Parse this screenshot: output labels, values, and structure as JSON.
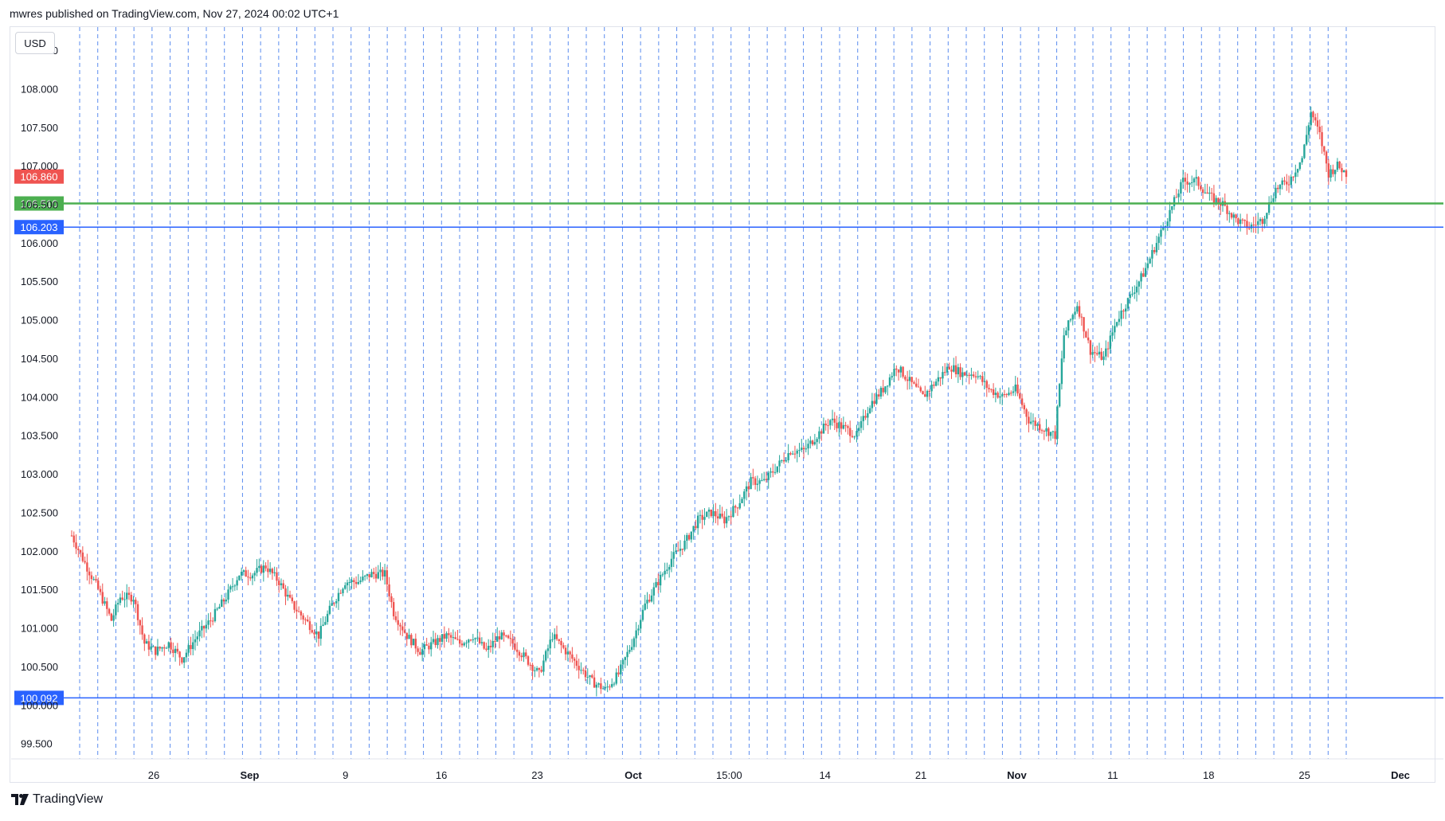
{
  "header": {
    "published_text": "mwres published on TradingView.com, Nov 27, 2024 00:02 UTC+1"
  },
  "currency_label": "USD",
  "footer": {
    "brand": "TradingView"
  },
  "colors": {
    "up": "#26a69a",
    "down": "#ef5350",
    "support": "#2962ff",
    "level_green": "#4caf50",
    "grid_dashed": "#5b8def"
  },
  "chart_data": {
    "type": "candlestick",
    "ylim": [
      99.3,
      108.8
    ],
    "y_ticks": [
      "99.500",
      "100.000",
      "100.500",
      "101.000",
      "101.500",
      "102.000",
      "102.500",
      "103.000",
      "103.500",
      "104.000",
      "104.500",
      "105.000",
      "105.500",
      "106.000",
      "106.500",
      "107.000",
      "107.500",
      "108.000",
      "108.500"
    ],
    "x_labels": [
      {
        "label": "26",
        "bold": false
      },
      {
        "label": "Sep",
        "bold": true
      },
      {
        "label": "9",
        "bold": false
      },
      {
        "label": "16",
        "bold": false
      },
      {
        "label": "23",
        "bold": false
      },
      {
        "label": "Oct",
        "bold": true
      },
      {
        "label": "15:00",
        "bold": false
      },
      {
        "label": "14",
        "bold": false
      },
      {
        "label": "21",
        "bold": false
      },
      {
        "label": "Nov",
        "bold": true
      },
      {
        "label": "11",
        "bold": false
      },
      {
        "label": "18",
        "bold": false
      },
      {
        "label": "25",
        "bold": false
      },
      {
        "label": "Dec",
        "bold": true
      }
    ],
    "price_levels": [
      {
        "value": 106.86,
        "label": "106.860",
        "color": "#ef5350",
        "line": false
      },
      {
        "value": 106.51,
        "label": "106.510",
        "color": "#4caf50",
        "line": true
      },
      {
        "value": 106.203,
        "label": "106.203",
        "color": "#2962ff",
        "line": true
      },
      {
        "value": 100.092,
        "label": "100.092",
        "color": "#2962ff",
        "line": true
      }
    ],
    "vertical_session_lines": 71,
    "path_anchors": [
      [
        0,
        102.2
      ],
      [
        5,
        101.9
      ],
      [
        12,
        101.5
      ],
      [
        18,
        101.1
      ],
      [
        22,
        101.4
      ],
      [
        28,
        101.4
      ],
      [
        33,
        100.8
      ],
      [
        38,
        100.7
      ],
      [
        44,
        100.8
      ],
      [
        50,
        100.6
      ],
      [
        57,
        100.9
      ],
      [
        63,
        101.1
      ],
      [
        70,
        101.4
      ],
      [
        76,
        101.7
      ],
      [
        82,
        101.7
      ],
      [
        88,
        101.8
      ],
      [
        94,
        101.6
      ],
      [
        100,
        101.3
      ],
      [
        106,
        101.1
      ],
      [
        112,
        100.9
      ],
      [
        118,
        101.3
      ],
      [
        124,
        101.6
      ],
      [
        130,
        101.6
      ],
      [
        136,
        101.7
      ],
      [
        142,
        101.7
      ],
      [
        146,
        101.2
      ],
      [
        152,
        100.9
      ],
      [
        158,
        100.7
      ],
      [
        164,
        100.8
      ],
      [
        170,
        100.9
      ],
      [
        176,
        100.8
      ],
      [
        182,
        100.9
      ],
      [
        188,
        100.7
      ],
      [
        194,
        100.9
      ],
      [
        200,
        100.8
      ],
      [
        206,
        100.6
      ],
      [
        212,
        100.4
      ],
      [
        218,
        100.9
      ],
      [
        224,
        100.7
      ],
      [
        230,
        100.5
      ],
      [
        236,
        100.3
      ],
      [
        242,
        100.2
      ],
      [
        248,
        100.4
      ],
      [
        254,
        100.8
      ],
      [
        260,
        101.3
      ],
      [
        266,
        101.6
      ],
      [
        272,
        101.9
      ],
      [
        278,
        102.1
      ],
      [
        284,
        102.4
      ],
      [
        290,
        102.5
      ],
      [
        296,
        102.4
      ],
      [
        302,
        102.6
      ],
      [
        308,
        102.9
      ],
      [
        314,
        102.9
      ],
      [
        320,
        103.1
      ],
      [
        326,
        103.3
      ],
      [
        332,
        103.3
      ],
      [
        338,
        103.5
      ],
      [
        344,
        103.7
      ],
      [
        350,
        103.6
      ],
      [
        356,
        103.5
      ],
      [
        362,
        103.9
      ],
      [
        368,
        104.1
      ],
      [
        374,
        104.4
      ],
      [
        380,
        104.2
      ],
      [
        386,
        104.0
      ],
      [
        392,
        104.2
      ],
      [
        398,
        104.4
      ],
      [
        404,
        104.3
      ],
      [
        410,
        104.3
      ],
      [
        416,
        104.1
      ],
      [
        422,
        104.0
      ],
      [
        428,
        104.1
      ],
      [
        434,
        103.7
      ],
      [
        440,
        103.6
      ],
      [
        446,
        103.5
      ],
      [
        450,
        104.8
      ],
      [
        456,
        105.2
      ],
      [
        462,
        104.6
      ],
      [
        468,
        104.5
      ],
      [
        474,
        105.0
      ],
      [
        480,
        105.3
      ],
      [
        486,
        105.6
      ],
      [
        492,
        106.0
      ],
      [
        498,
        106.4
      ],
      [
        504,
        106.8
      ],
      [
        510,
        106.8
      ],
      [
        516,
        106.6
      ],
      [
        522,
        106.5
      ],
      [
        528,
        106.3
      ],
      [
        534,
        106.2
      ],
      [
        540,
        106.3
      ],
      [
        546,
        106.7
      ],
      [
        552,
        106.8
      ],
      [
        558,
        107.1
      ],
      [
        562,
        107.7
      ],
      [
        566,
        107.4
      ],
      [
        570,
        106.9
      ],
      [
        574,
        107.0
      ],
      [
        578,
        106.9
      ]
    ]
  }
}
